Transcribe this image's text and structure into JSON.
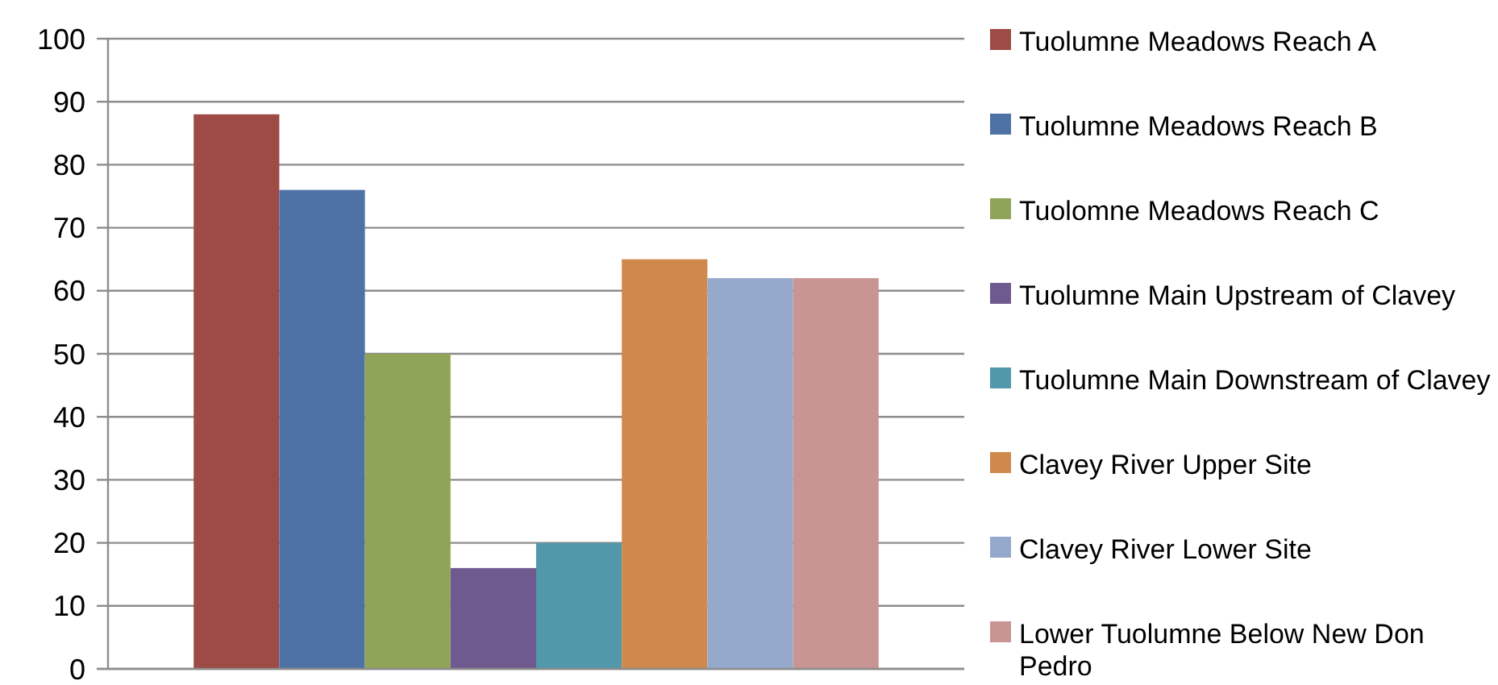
{
  "chart_data": {
    "type": "bar",
    "categories": [
      null
    ],
    "series": [
      {
        "name": "Tuolumne Meadows Reach A",
        "color": "#9e4a45",
        "values": [
          88
        ]
      },
      {
        "name": "Tuolumne Meadows Reach B",
        "color": "#4e71a6",
        "values": [
          76
        ]
      },
      {
        "name": "Tuolomne Meadows Reach C",
        "color": "#90a458",
        "values": [
          50
        ]
      },
      {
        "name": "Tuolumne Main Upstream of Clavey",
        "color": "#6e5a8e",
        "values": [
          16
        ]
      },
      {
        "name": "Tuolumne Main Downstream of Clavey",
        "color": "#5298ab",
        "values": [
          20
        ]
      },
      {
        "name": "Clavey River Upper Site",
        "color": "#d0894c",
        "values": [
          65
        ]
      },
      {
        "name": "Clavey River Lower Site",
        "color": "#95a9cd",
        "values": [
          62
        ]
      },
      {
        "name": "Lower Tuolumne Below New Don Pedro",
        "color": "#c89593",
        "values": [
          62
        ]
      }
    ],
    "ylim": [
      0,
      100
    ],
    "yticks": [
      0,
      10,
      20,
      30,
      40,
      50,
      60,
      70,
      80,
      90,
      100
    ],
    "grid": "y",
    "legend": "right"
  }
}
